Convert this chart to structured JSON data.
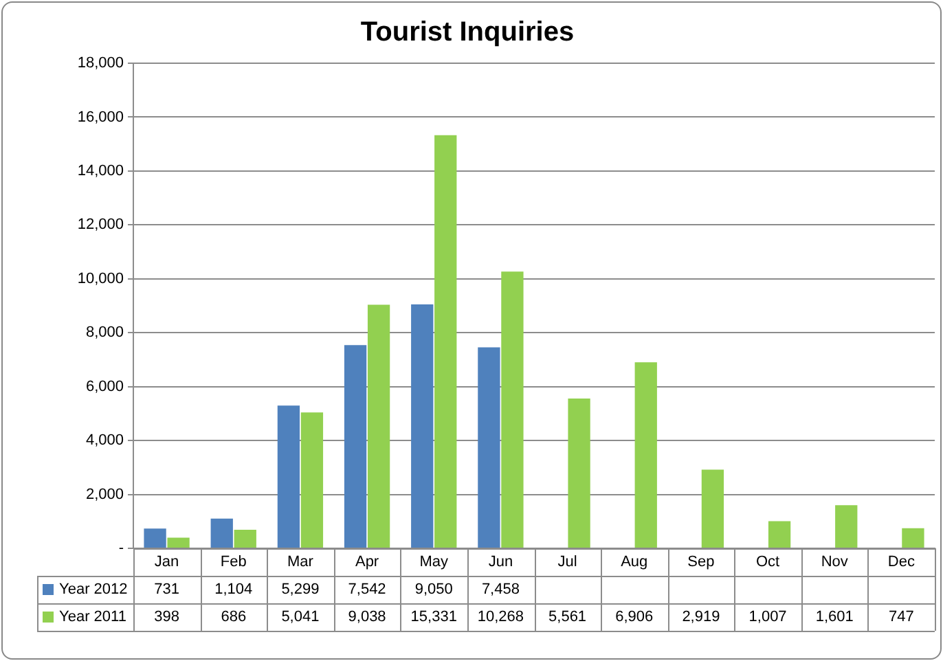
{
  "chart_data": {
    "type": "bar",
    "title": "Tourist Inquiries",
    "categories": [
      "Jan",
      "Feb",
      "Mar",
      "Apr",
      "May",
      "Jun",
      "Jul",
      "Aug",
      "Sep",
      "Oct",
      "Nov",
      "Dec"
    ],
    "series": [
      {
        "name": "Year 2012",
        "color": "#4f81bd",
        "values": [
          731,
          1104,
          5299,
          7542,
          9050,
          7458,
          null,
          null,
          null,
          null,
          null,
          null
        ],
        "value_labels": [
          "731",
          "1,104",
          "5,299",
          "7,542",
          "9,050",
          "7,458",
          null,
          null,
          null,
          null,
          null,
          null
        ]
      },
      {
        "name": "Year 2011",
        "color": "#92d050",
        "values": [
          398,
          686,
          5041,
          9038,
          15331,
          10268,
          5561,
          6906,
          2919,
          1007,
          1601,
          747
        ],
        "value_labels": [
          "398",
          "686",
          "5,041",
          "9,038",
          "15,331",
          "10,268",
          "5,561",
          "6,906",
          "2,919",
          "1,007",
          "1,601",
          "747"
        ]
      }
    ],
    "ylim": [
      0,
      18000
    ],
    "yticks": [
      {
        "value": 0,
        "label": "-"
      },
      {
        "value": 2000,
        "label": "2,000"
      },
      {
        "value": 4000,
        "label": "4,000"
      },
      {
        "value": 6000,
        "label": "6,000"
      },
      {
        "value": 8000,
        "label": "8,000"
      },
      {
        "value": 10000,
        "label": "10,000"
      },
      {
        "value": 12000,
        "label": "12,000"
      },
      {
        "value": 14000,
        "label": "14,000"
      },
      {
        "value": 16000,
        "label": "16,000"
      },
      {
        "value": 18000,
        "label": "18,000"
      }
    ],
    "grid": "y",
    "legend": "bottom"
  }
}
